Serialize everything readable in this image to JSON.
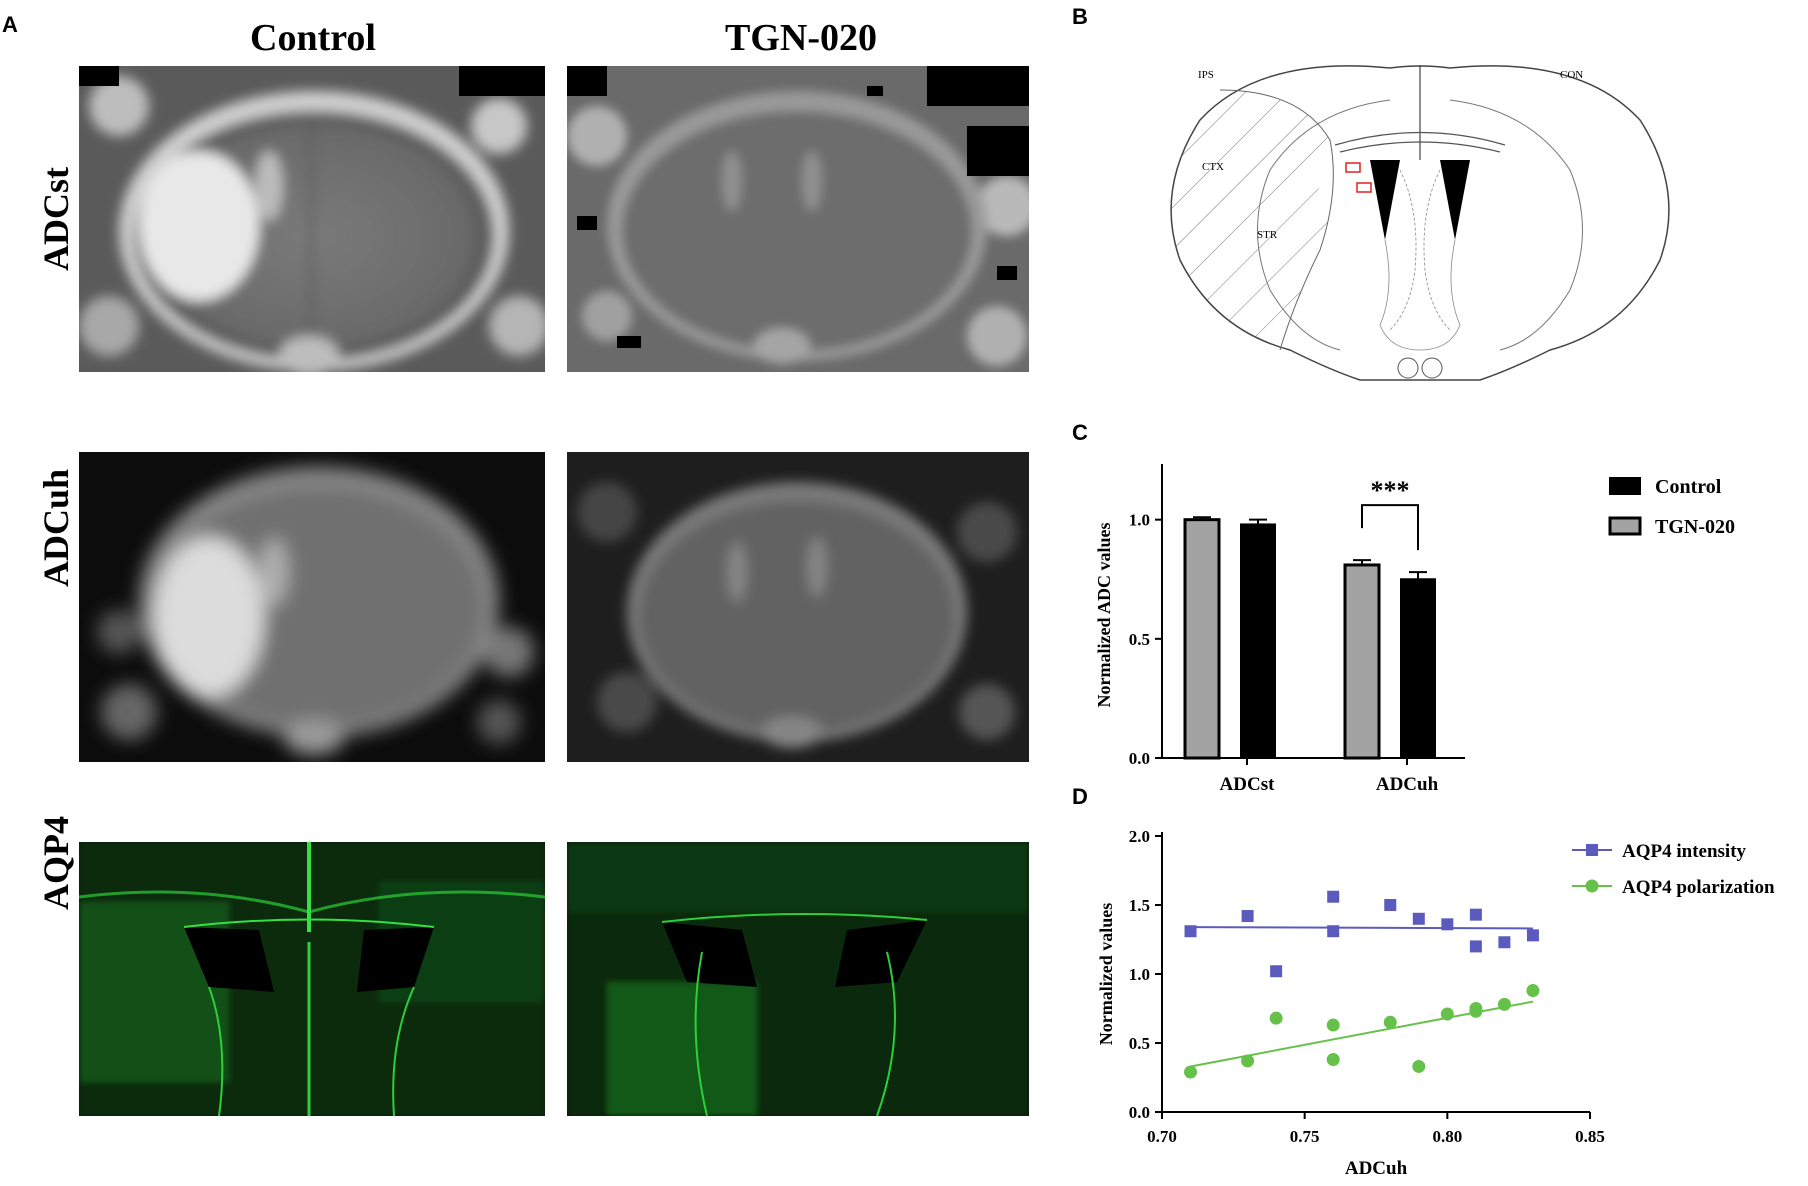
{
  "panels": {
    "a": "A",
    "b": "B",
    "c": "C",
    "d": "D"
  },
  "panel_a": {
    "columns": [
      "Control",
      "TGN-020"
    ],
    "rows": [
      "ADCst",
      "ADCuh",
      "AQP4"
    ]
  },
  "panel_b": {
    "labels": {
      "ips": "IPS",
      "con": "CON",
      "ctx": "CTX",
      "str": "STR"
    }
  },
  "colors": {
    "control_bar": "#000000",
    "tgn_bar": "#a3a3a3",
    "intensity": "#5b5bbf",
    "polarization": "#66c14a",
    "roi_box": "#e02020",
    "aqp4_green": "#2ccf3a"
  },
  "chart_data": [
    {
      "id": "C",
      "type": "bar",
      "title": "",
      "xlabel": "",
      "ylabel": "Normalized ADC values",
      "ylim": [
        0,
        1.2
      ],
      "yticks": [
        "0.0",
        "0.5",
        "1.0"
      ],
      "categories": [
        "ADCst",
        "ADCuh"
      ],
      "series": [
        {
          "name": "TGN-020",
          "values": [
            1.0,
            0.81
          ],
          "errors": [
            0.01,
            0.02
          ]
        },
        {
          "name": "Control",
          "values": [
            0.98,
            0.75
          ],
          "errors": [
            0.02,
            0.03
          ]
        }
      ],
      "legend": [
        "Control",
        "TGN-020"
      ],
      "legend_position": "right",
      "annotation": "***"
    },
    {
      "id": "D",
      "type": "scatter",
      "title": "",
      "xlabel": "ADCuh",
      "ylabel": "Normalized values",
      "xlim": [
        0.7,
        0.85
      ],
      "ylim": [
        0,
        2.0
      ],
      "xticks": [
        "0.70",
        "0.75",
        "0.80",
        "0.85"
      ],
      "yticks": [
        "0.0",
        "0.5",
        "1.0",
        "1.5",
        "2.0"
      ],
      "legend_position": "right",
      "series": [
        {
          "name": "AQP4 intensity",
          "marker": "square",
          "points": [
            [
              0.71,
              1.31
            ],
            [
              0.73,
              1.42
            ],
            [
              0.74,
              1.02
            ],
            [
              0.76,
              1.56
            ],
            [
              0.76,
              1.31
            ],
            [
              0.78,
              1.5
            ],
            [
              0.79,
              1.4
            ],
            [
              0.8,
              1.36
            ],
            [
              0.81,
              1.43
            ],
            [
              0.81,
              1.2
            ],
            [
              0.82,
              1.23
            ],
            [
              0.83,
              1.28
            ]
          ],
          "fit": [
            [
              0.71,
              1.34
            ],
            [
              0.83,
              1.33
            ]
          ]
        },
        {
          "name": "AQP4 polarization",
          "marker": "circle",
          "points": [
            [
              0.71,
              0.29
            ],
            [
              0.73,
              0.37
            ],
            [
              0.74,
              0.68
            ],
            [
              0.76,
              0.63
            ],
            [
              0.76,
              0.38
            ],
            [
              0.78,
              0.65
            ],
            [
              0.79,
              0.33
            ],
            [
              0.8,
              0.71
            ],
            [
              0.81,
              0.73
            ],
            [
              0.81,
              0.75
            ],
            [
              0.82,
              0.78
            ],
            [
              0.83,
              0.88
            ]
          ],
          "fit": [
            [
              0.71,
              0.33
            ],
            [
              0.83,
              0.8
            ]
          ]
        }
      ]
    }
  ]
}
